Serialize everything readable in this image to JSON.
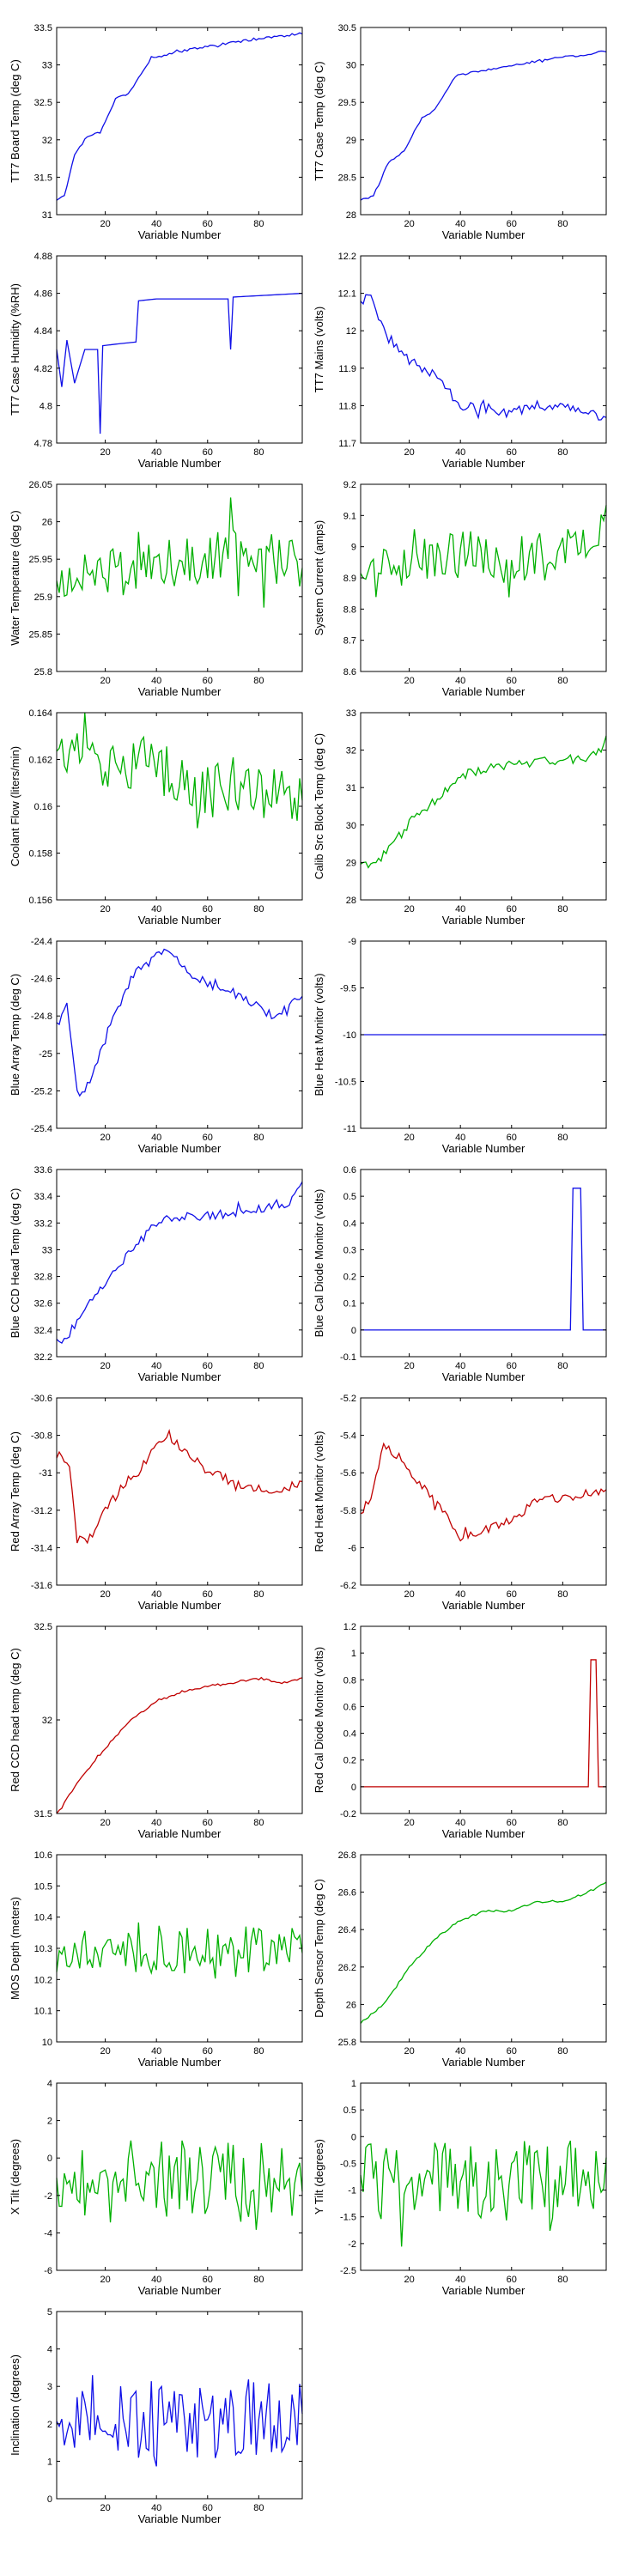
{
  "figure": {
    "x_ticks": [
      20,
      40,
      60,
      80
    ],
    "colors": {
      "blue": "#1010e8",
      "green": "#00b000",
      "red": "#c00000",
      "axis": "#000000"
    }
  },
  "chart_data": [
    {
      "type": "line",
      "ylabel": "TT7 Board Temp (deg C)",
      "xlabel": "Variable Number",
      "xlim": [
        1,
        97
      ],
      "ylim": [
        31,
        33.5
      ],
      "yticks": [
        "31",
        "31.5",
        "32",
        "32.5",
        "33",
        "33.5"
      ],
      "color": "blue",
      "key_points": [
        [
          1,
          31.2
        ],
        [
          4,
          31.25
        ],
        [
          8,
          31.8
        ],
        [
          13,
          32.05
        ],
        [
          18,
          32.1
        ],
        [
          24,
          32.55
        ],
        [
          29,
          32.62
        ],
        [
          38,
          33.08
        ],
        [
          45,
          33.15
        ],
        [
          60,
          33.25
        ],
        [
          80,
          33.35
        ],
        [
          97,
          33.42
        ]
      ]
    },
    {
      "type": "line",
      "ylabel": "TT7 Case Temp (deg C)",
      "xlabel": "Variable Number",
      "xlim": [
        1,
        97
      ],
      "ylim": [
        28,
        30.5
      ],
      "yticks": [
        "28",
        "28.5",
        "29",
        "29.5",
        "30",
        "30.5"
      ],
      "color": "blue",
      "key_points": [
        [
          1,
          28.2
        ],
        [
          6,
          28.25
        ],
        [
          12,
          28.7
        ],
        [
          18,
          28.85
        ],
        [
          25,
          29.3
        ],
        [
          30,
          29.4
        ],
        [
          38,
          29.85
        ],
        [
          45,
          29.9
        ],
        [
          60,
          30.0
        ],
        [
          80,
          30.1
        ],
        [
          97,
          30.18
        ]
      ]
    },
    {
      "type": "line",
      "ylabel": "TT7 Case Humidity (%RH)",
      "xlabel": "Variable Number",
      "xlim": [
        1,
        97
      ],
      "ylim": [
        4.78,
        4.88
      ],
      "yticks": [
        "4.78",
        "4.8",
        "4.82",
        "4.84",
        "4.86",
        "4.88"
      ],
      "color": "blue",
      "key_points": [
        [
          1,
          4.83
        ],
        [
          3,
          4.81
        ],
        [
          5,
          4.835
        ],
        [
          8,
          4.812
        ],
        [
          12,
          4.83
        ],
        [
          17,
          4.83
        ],
        [
          18,
          4.785
        ],
        [
          19,
          4.832
        ],
        [
          25,
          4.833
        ],
        [
          32,
          4.834
        ],
        [
          33,
          4.856
        ],
        [
          40,
          4.857
        ],
        [
          68,
          4.857
        ],
        [
          69,
          4.83
        ],
        [
          70,
          4.858
        ],
        [
          97,
          4.86
        ]
      ]
    },
    {
      "type": "line",
      "ylabel": "TT7 Mains  (volts)",
      "xlabel": "Variable Number",
      "xlim": [
        1,
        97
      ],
      "ylim": [
        11.7,
        12.2
      ],
      "yticks": [
        "11.7",
        "11.8",
        "11.9",
        "12",
        "12.1",
        "12.2"
      ],
      "color": "blue",
      "key_points": [
        [
          1,
          12.08
        ],
        [
          5,
          12.09
        ],
        [
          10,
          12.0
        ],
        [
          15,
          11.96
        ],
        [
          20,
          11.92
        ],
        [
          30,
          11.88
        ],
        [
          40,
          11.8
        ],
        [
          50,
          11.79
        ],
        [
          60,
          11.78
        ],
        [
          70,
          11.8
        ],
        [
          80,
          11.8
        ],
        [
          90,
          11.78
        ],
        [
          97,
          11.76
        ]
      ]
    },
    {
      "type": "line",
      "ylabel": "Water Temperature (deg C)",
      "xlabel": "Variable Number",
      "xlim": [
        1,
        97
      ],
      "ylim": [
        25.8,
        26.05
      ],
      "yticks": [
        "25.8",
        "25.85",
        "25.9",
        "25.95",
        "26",
        "26.05"
      ],
      "color": "green",
      "key_points": [
        [
          1,
          25.92
        ],
        [
          20,
          25.93
        ],
        [
          40,
          25.94
        ],
        [
          60,
          25.95
        ],
        [
          80,
          25.96
        ],
        [
          97,
          25.94
        ]
      ]
    },
    {
      "type": "line",
      "ylabel": "System Current (amps)",
      "xlabel": "Variable Number",
      "xlim": [
        1,
        97
      ],
      "ylim": [
        8.6,
        9.2
      ],
      "yticks": [
        "8.6",
        "8.7",
        "8.8",
        "8.9",
        "9",
        "9.1",
        "9.2"
      ],
      "color": "green",
      "key_points": [
        [
          1,
          8.9
        ],
        [
          20,
          8.95
        ],
        [
          40,
          8.97
        ],
        [
          60,
          8.95
        ],
        [
          80,
          8.97
        ],
        [
          90,
          9.0
        ],
        [
          97,
          9.05
        ]
      ]
    },
    {
      "type": "line",
      "ylabel": "Coolant Flow (liters/min)",
      "xlabel": "Variable Number",
      "xlim": [
        1,
        97
      ],
      "ylim": [
        0.156,
        0.164
      ],
      "yticks": [
        "0.156",
        "0.158",
        "0.16",
        "0.162",
        "0.164"
      ],
      "color": "green",
      "key_points": [
        [
          1,
          0.162
        ],
        [
          10,
          0.1625
        ],
        [
          25,
          0.1615
        ],
        [
          40,
          0.1618
        ],
        [
          55,
          0.1605
        ],
        [
          70,
          0.161
        ],
        [
          85,
          0.1605
        ],
        [
          97,
          0.1605
        ]
      ]
    },
    {
      "type": "line",
      "ylabel": "Calib Src Block Temp (deg C)",
      "xlabel": "Variable Number",
      "xlim": [
        1,
        97
      ],
      "ylim": [
        28,
        33
      ],
      "yticks": [
        "28",
        "29",
        "30",
        "31",
        "32",
        "33"
      ],
      "color": "green",
      "key_points": [
        [
          1,
          28.9
        ],
        [
          6,
          28.9
        ],
        [
          15,
          29.6
        ],
        [
          22,
          30.2
        ],
        [
          28,
          30.5
        ],
        [
          35,
          31.0
        ],
        [
          42,
          31.35
        ],
        [
          50,
          31.5
        ],
        [
          60,
          31.6
        ],
        [
          75,
          31.7
        ],
        [
          90,
          31.8
        ],
        [
          94,
          31.9
        ],
        [
          97,
          32.3
        ]
      ]
    },
    {
      "type": "line",
      "ylabel": "Blue Array Temp (deg C)",
      "xlabel": "Variable Number",
      "xlim": [
        1,
        97
      ],
      "ylim": [
        -25.4,
        -24.4
      ],
      "yticks": [
        "-25.4",
        "-25.2",
        "-25",
        "-24.8",
        "-24.6",
        "-24.4"
      ],
      "color": "blue",
      "key_points": [
        [
          1,
          -24.85
        ],
        [
          5,
          -24.75
        ],
        [
          9,
          -25.2
        ],
        [
          12,
          -25.2
        ],
        [
          18,
          -25.0
        ],
        [
          25,
          -24.75
        ],
        [
          30,
          -24.6
        ],
        [
          36,
          -24.5
        ],
        [
          45,
          -24.45
        ],
        [
          55,
          -24.6
        ],
        [
          65,
          -24.65
        ],
        [
          75,
          -24.7
        ],
        [
          85,
          -24.8
        ],
        [
          97,
          -24.7
        ]
      ]
    },
    {
      "type": "line",
      "ylabel": "Blue Heat Monitor (volts)",
      "xlabel": "Variable Number",
      "xlim": [
        1,
        97
      ],
      "ylim": [
        -11,
        -9
      ],
      "yticks": [
        "-11",
        "-10.5",
        "-10",
        "-9.5",
        "-9"
      ],
      "color": "blue",
      "key_points": [
        [
          1,
          -10
        ],
        [
          97,
          -10
        ]
      ]
    },
    {
      "type": "line",
      "ylabel": "Blue CCD Head Temp (deg C)",
      "xlabel": "Variable Number",
      "xlim": [
        1,
        97
      ],
      "ylim": [
        32.2,
        33.6
      ],
      "yticks": [
        "32.2",
        "32.4",
        "32.6",
        "32.8",
        "33",
        "33.2",
        "33.4",
        "33.6"
      ],
      "color": "blue",
      "key_points": [
        [
          1,
          32.3
        ],
        [
          5,
          32.35
        ],
        [
          10,
          32.5
        ],
        [
          20,
          32.75
        ],
        [
          30,
          33.0
        ],
        [
          40,
          33.2
        ],
        [
          50,
          33.25
        ],
        [
          60,
          33.25
        ],
        [
          80,
          33.3
        ],
        [
          92,
          33.35
        ],
        [
          97,
          33.48
        ]
      ]
    },
    {
      "type": "line",
      "ylabel": "Blue Cal Diode Monitor (volts)",
      "xlabel": "Variable Number",
      "xlim": [
        1,
        97
      ],
      "ylim": [
        -0.1,
        0.6
      ],
      "yticks": [
        "-0.1",
        "0",
        "0.1",
        "0.2",
        "0.3",
        "0.4",
        "0.5",
        "0.6"
      ],
      "color": "blue",
      "key_points": [
        [
          1,
          0
        ],
        [
          83,
          0
        ],
        [
          84,
          0.53
        ],
        [
          87,
          0.53
        ],
        [
          88,
          0
        ],
        [
          97,
          0
        ]
      ]
    },
    {
      "type": "line",
      "ylabel": "Red Array Temp (deg C)",
      "xlabel": "Variable Number",
      "xlim": [
        1,
        97
      ],
      "ylim": [
        -31.6,
        -30.6
      ],
      "yticks": [
        "-31.6",
        "-31.4",
        "-31.2",
        "-31",
        "-30.8",
        "-30.6"
      ],
      "color": "red",
      "key_points": [
        [
          1,
          -30.9
        ],
        [
          6,
          -30.95
        ],
        [
          9,
          -31.35
        ],
        [
          14,
          -31.35
        ],
        [
          20,
          -31.2
        ],
        [
          28,
          -31.05
        ],
        [
          33,
          -31.0
        ],
        [
          40,
          -30.85
        ],
        [
          45,
          -30.8
        ],
        [
          55,
          -30.95
        ],
        [
          70,
          -31.05
        ],
        [
          85,
          -31.1
        ],
        [
          97,
          -31.05
        ]
      ]
    },
    {
      "type": "line",
      "ylabel": "Red Heat Monitor (volts)",
      "xlabel": "Variable Number",
      "xlim": [
        1,
        97
      ],
      "ylim": [
        -6.2,
        -5.2
      ],
      "yticks": [
        "-6.2",
        "-6",
        "-5.8",
        "-5.6",
        "-5.4",
        "-5.2"
      ],
      "color": "red",
      "key_points": [
        [
          1,
          -5.8
        ],
        [
          5,
          -5.75
        ],
        [
          10,
          -5.45
        ],
        [
          15,
          -5.5
        ],
        [
          20,
          -5.6
        ],
        [
          30,
          -5.75
        ],
        [
          40,
          -5.95
        ],
        [
          50,
          -5.9
        ],
        [
          60,
          -5.85
        ],
        [
          70,
          -5.75
        ],
        [
          85,
          -5.72
        ],
        [
          97,
          -5.7
        ]
      ]
    },
    {
      "type": "line",
      "ylabel": "Red CCD head temp (deg C)",
      "xlabel": "Variable Number",
      "xlim": [
        1,
        97
      ],
      "ylim": [
        31.5,
        32.5
      ],
      "yticks": [
        "31.5",
        "32",
        "32.5"
      ],
      "color": "red",
      "key_points": [
        [
          1,
          31.5
        ],
        [
          5,
          31.58
        ],
        [
          10,
          31.68
        ],
        [
          20,
          31.85
        ],
        [
          30,
          32.0
        ],
        [
          40,
          32.1
        ],
        [
          50,
          32.15
        ],
        [
          60,
          32.18
        ],
        [
          70,
          32.2
        ],
        [
          80,
          32.22
        ],
        [
          90,
          32.2
        ],
        [
          97,
          32.22
        ]
      ]
    },
    {
      "type": "line",
      "ylabel": "Red Cal Diode Monitor (volts)",
      "xlabel": "Variable Number",
      "xlim": [
        1,
        97
      ],
      "ylim": [
        -0.2,
        1.2
      ],
      "yticks": [
        "-0.2",
        "0",
        "0.2",
        "0.4",
        "0.6",
        "0.8",
        "1",
        "1.2"
      ],
      "color": "red",
      "key_points": [
        [
          1,
          0
        ],
        [
          90,
          0
        ],
        [
          91,
          0.95
        ],
        [
          93,
          0.95
        ],
        [
          94,
          0
        ],
        [
          97,
          0
        ]
      ]
    },
    {
      "type": "line",
      "ylabel": "MOS Depth  (meters)",
      "xlabel": "Variable Number",
      "xlim": [
        1,
        97
      ],
      "ylim": [
        10,
        10.6
      ],
      "yticks": [
        "10",
        "10.1",
        "10.2",
        "10.3",
        "10.4",
        "10.5",
        "10.6"
      ],
      "color": "green",
      "key_points": [
        [
          1,
          10.25
        ],
        [
          20,
          10.3
        ],
        [
          40,
          10.3
        ],
        [
          60,
          10.28
        ],
        [
          80,
          10.3
        ],
        [
          97,
          10.3
        ]
      ]
    },
    {
      "type": "line",
      "ylabel": "Depth Sensor Temp (deg C)",
      "xlabel": "Variable Number",
      "xlim": [
        1,
        97
      ],
      "ylim": [
        25.8,
        26.8
      ],
      "yticks": [
        "25.8",
        "26",
        "26.2",
        "26.4",
        "26.6",
        "26.8"
      ],
      "color": "green",
      "key_points": [
        [
          1,
          25.9
        ],
        [
          10,
          26.0
        ],
        [
          20,
          26.2
        ],
        [
          30,
          26.35
        ],
        [
          40,
          26.45
        ],
        [
          50,
          26.5
        ],
        [
          60,
          26.5
        ],
        [
          70,
          26.55
        ],
        [
          80,
          26.55
        ],
        [
          90,
          26.6
        ],
        [
          97,
          26.65
        ]
      ]
    },
    {
      "type": "line",
      "ylabel": "X Tilt  (degrees)",
      "xlabel": "Variable Number",
      "xlim": [
        1,
        97
      ],
      "ylim": [
        -6,
        4
      ],
      "yticks": [
        "-6",
        "-4",
        "-2",
        "0",
        "2",
        "4"
      ],
      "color": "green",
      "key_points": [
        [
          1,
          -1
        ],
        [
          20,
          -1.3
        ],
        [
          40,
          -1.2
        ],
        [
          60,
          -1.2
        ],
        [
          80,
          -1.3
        ],
        [
          97,
          -1.2
        ]
      ]
    },
    {
      "type": "line",
      "ylabel": "Y Tilt  (degrees)",
      "xlabel": "Variable Number",
      "xlim": [
        1,
        97
      ],
      "ylim": [
        -2.5,
        1
      ],
      "yticks": [
        "-2.5",
        "-2",
        "-1.5",
        "-1",
        "-0.5",
        "0",
        "0.5",
        "1"
      ],
      "color": "green",
      "key_points": [
        [
          1,
          -0.8
        ],
        [
          20,
          -0.9
        ],
        [
          40,
          -0.85
        ],
        [
          60,
          -0.8
        ],
        [
          80,
          -0.8
        ],
        [
          97,
          -0.85
        ]
      ]
    },
    {
      "type": "line",
      "ylabel": "Inclination  (degrees)",
      "xlabel": "Variable Number",
      "xlim": [
        1,
        97
      ],
      "ylim": [
        0,
        5
      ],
      "yticks": [
        "0",
        "1",
        "2",
        "3",
        "4",
        "5"
      ],
      "color": "blue",
      "key_points": [
        [
          1,
          1.8
        ],
        [
          20,
          2.0
        ],
        [
          40,
          2.1
        ],
        [
          60,
          2.2
        ],
        [
          80,
          2.1
        ],
        [
          97,
          2.0
        ]
      ]
    }
  ]
}
